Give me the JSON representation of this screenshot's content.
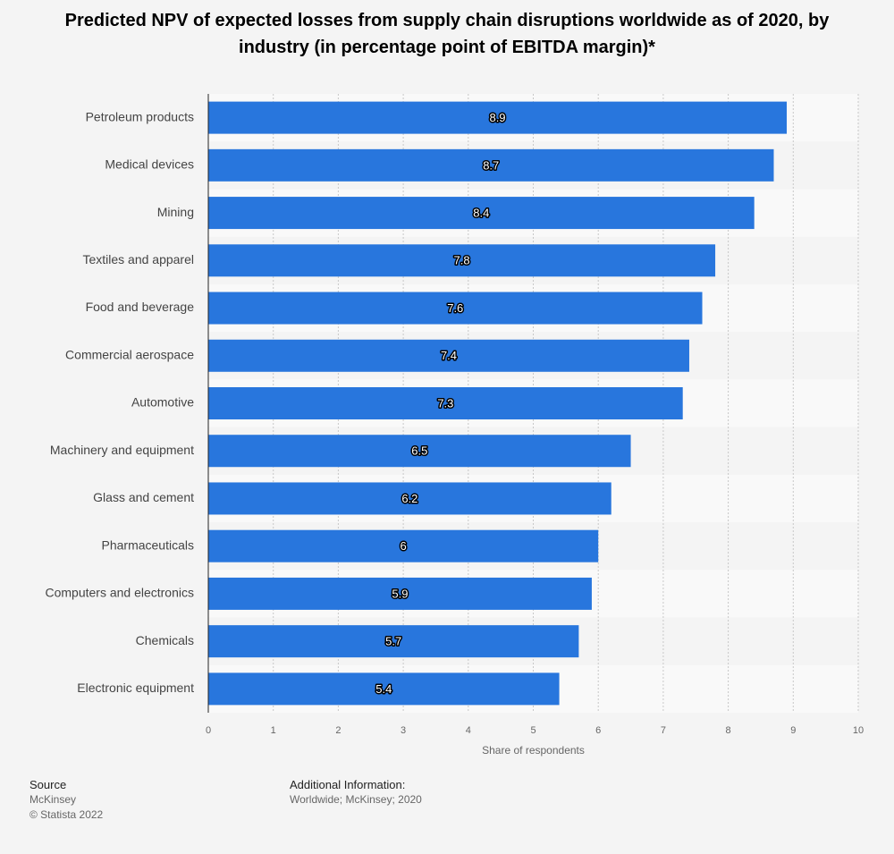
{
  "chart_data": {
    "type": "bar",
    "orientation": "horizontal",
    "title": "Predicted NPV of expected losses from supply chain disruptions worldwide as of 2020, by industry (in percentage point of EBITDA margin)*",
    "categories": [
      "Petroleum products",
      "Medical devices",
      "Mining",
      "Textiles and apparel",
      "Food and beverage",
      "Commercial aerospace",
      "Automotive",
      "Machinery and equipment",
      "Glass and cement",
      "Pharmaceuticals",
      "Computers and electronics",
      "Chemicals",
      "Electronic equipment"
    ],
    "values": [
      8.9,
      8.7,
      8.4,
      7.8,
      7.6,
      7.4,
      7.3,
      6.5,
      6.2,
      6,
      5.9,
      5.7,
      5.4
    ],
    "color": "#2876dd",
    "xlim": [
      0,
      10
    ],
    "xticks": [
      0,
      1,
      2,
      3,
      4,
      5,
      6,
      7,
      8,
      9,
      10
    ],
    "x_label": "Share of respondents",
    "grid": true
  },
  "footer": {
    "source_title": "Source",
    "source": "McKinsey",
    "copyright": "© Statista 2022",
    "info_title": "Additional Information:",
    "info": "Worldwide; McKinsey; 2020"
  }
}
